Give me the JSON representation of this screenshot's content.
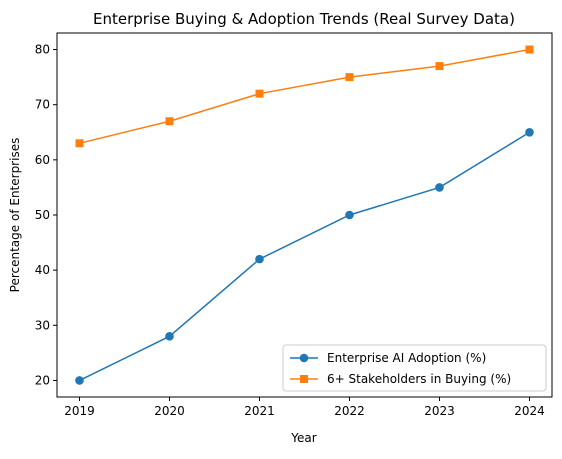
{
  "chart_data": {
    "type": "line",
    "title": "Enterprise Buying & Adoption Trends (Real Survey Data)",
    "xlabel": "Year",
    "ylabel": "Percentage of Enterprises",
    "x": [
      2019,
      2020,
      2021,
      2022,
      2023,
      2024
    ],
    "x_tick_labels": [
      "2019",
      "2020",
      "2021",
      "2022",
      "2023",
      "2024"
    ],
    "y_ticks": [
      20,
      30,
      40,
      50,
      60,
      70,
      80
    ],
    "y_tick_labels": [
      "20",
      "30",
      "40",
      "50",
      "60",
      "70",
      "80"
    ],
    "xlim": [
      2018.75,
      2024.25
    ],
    "ylim": [
      17.0,
      83.0
    ],
    "grid": false,
    "legend_position": "lower-right",
    "series": [
      {
        "name": "Enterprise AI Adoption (%)",
        "values": [
          20,
          28,
          42,
          50,
          55,
          65
        ],
        "color": "#1f77b4",
        "marker": "circle"
      },
      {
        "name": "6+ Stakeholders in Buying (%)",
        "values": [
          63,
          67,
          72,
          75,
          77,
          80
        ],
        "color": "#ff7f0e",
        "marker": "square"
      }
    ]
  }
}
